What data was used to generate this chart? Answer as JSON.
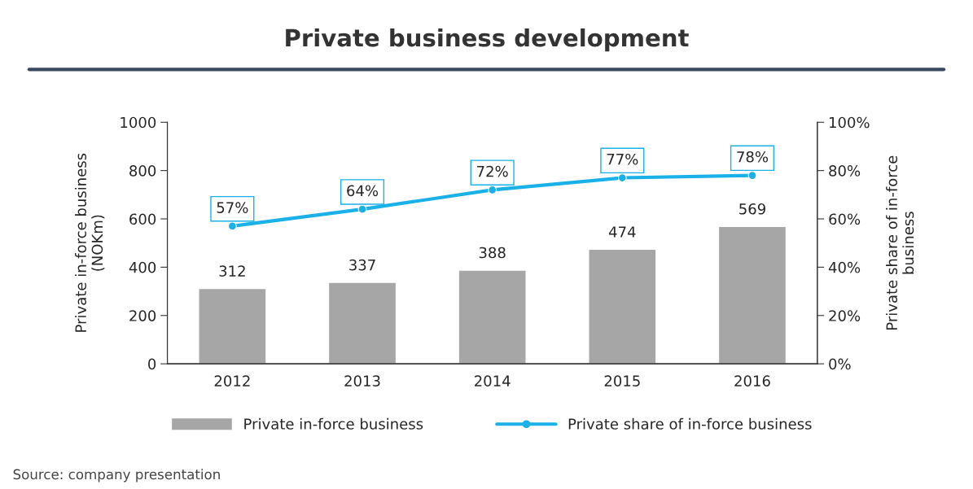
{
  "chart_data": {
    "type": "bar",
    "title": "Private business development",
    "categories": [
      "2012",
      "2013",
      "2014",
      "2015",
      "2016"
    ],
    "series": [
      {
        "name": "Private in-force business",
        "type": "bar",
        "color": "#a6a6a6",
        "values": [
          312,
          337,
          388,
          474,
          569
        ],
        "value_labels": [
          "312",
          "337",
          "388",
          "474",
          "569"
        ]
      },
      {
        "name": "Private share of in-force business",
        "type": "line",
        "axis": "y2",
        "color": "#1ab0e8",
        "values": [
          57,
          64,
          72,
          77,
          78
        ],
        "value_labels": [
          "57%",
          "64%",
          "72%",
          "77%",
          "78%"
        ]
      }
    ],
    "ylabel": "Private in-force business\n(NOKm)",
    "y2label": "Private share of in-force\nbusiness",
    "ylim": [
      0,
      1000
    ],
    "yticks": [
      0,
      200,
      400,
      600,
      800,
      1000
    ],
    "y2lim": [
      0,
      100
    ],
    "y2ticks": [
      {
        "value": 0,
        "label": "0%"
      },
      {
        "value": 20,
        "label": "20%"
      },
      {
        "value": 40,
        "label": "40%"
      },
      {
        "value": 60,
        "label": "60%"
      },
      {
        "value": 80,
        "label": "80%"
      },
      {
        "value": 100,
        "label": "100%"
      }
    ],
    "marker": "circle",
    "grid": false,
    "legend": "bottom",
    "annotations": [
      "Source: company presentation"
    ]
  }
}
